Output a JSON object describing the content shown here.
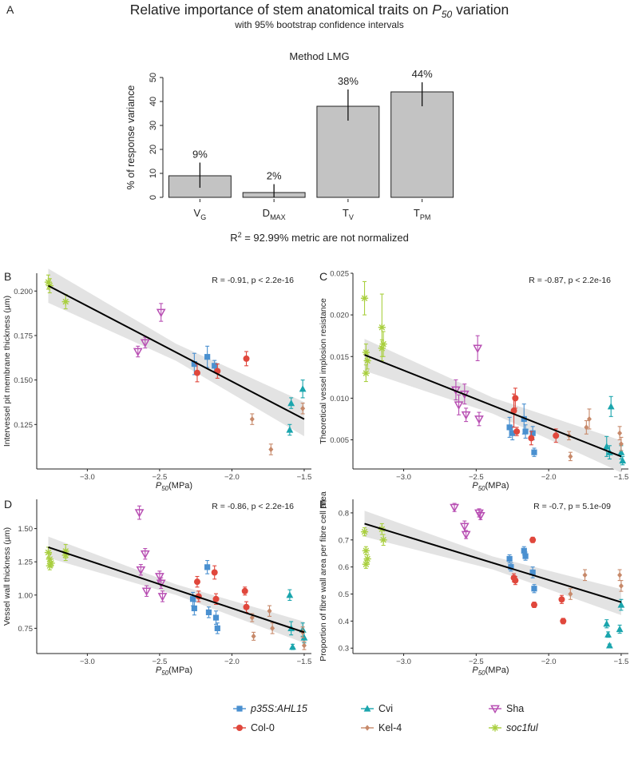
{
  "chart_data": [
    {
      "panel": "A",
      "type": "bar",
      "title": "Relative importance of stem anatomical traits on P50 variation",
      "title_main": "Relative importance of stem anatomical traits on ",
      "title_italic": "P",
      "title_sub": "50",
      "title_end": " variation",
      "subtitle": "with 95% bootstrap confidence intervals",
      "method": "Method LMG",
      "ylabel": "% of response variance",
      "ylim": [
        0,
        50
      ],
      "yticks": [
        "0",
        "10",
        "20",
        "30",
        "40",
        "50"
      ],
      "categories": [
        {
          "base": "V",
          "sub": "G"
        },
        {
          "base": "D",
          "sub": "MAX"
        },
        {
          "base": "T",
          "sub": "V"
        },
        {
          "base": "T",
          "sub": "PM"
        }
      ],
      "values": [
        9,
        2,
        38,
        44
      ],
      "value_labels": [
        "9%",
        "2%",
        "38%",
        "44%"
      ],
      "ci": [
        [
          4,
          14.5
        ],
        [
          0,
          5.5
        ],
        [
          32,
          45
        ],
        [
          38,
          48
        ]
      ],
      "footnote_pre": "R",
      "footnote_sup": "2",
      "footnote_post": " = 92.99% metric are not normalized"
    },
    {
      "panel": "B",
      "type": "scatter",
      "ylabel": "Intervessel pit membrane thickness (µm)",
      "xlabel_italic": "P",
      "xlabel_sub": "50",
      "xlabel_unit": "(MPa)",
      "xlim": [
        -3.35,
        -1.45
      ],
      "ylim": [
        0.1,
        0.21
      ],
      "xticks": [
        "-3.0",
        "-2.5",
        "-2.0",
        "-1.5"
      ],
      "xtick_values": [
        -3.0,
        -2.5,
        -2.0,
        -1.5
      ],
      "yticks": [
        "0.125",
        "0.150",
        "0.175",
        "0.200"
      ],
      "ytick_values": [
        0.125,
        0.15,
        0.175,
        0.2
      ],
      "annotation": "R = -0.91, p < 2.2e-16",
      "fit": {
        "x": [
          -3.27,
          -1.5
        ],
        "y": [
          0.203,
          0.128
        ],
        "band": 0.006
      },
      "series": [
        {
          "name": "soc1ful",
          "x": [
            -3.27,
            -3.26,
            -3.15
          ],
          "y": [
            0.205,
            0.203,
            0.194
          ],
          "err": [
            0.004,
            0.004,
            0.004
          ]
        },
        {
          "name": "Sha",
          "x": [
            -2.65,
            -2.6,
            -2.49
          ],
          "y": [
            0.166,
            0.171,
            0.188
          ],
          "err": [
            0.003,
            0.003,
            0.005
          ]
        },
        {
          "name": "p35S:AHL15",
          "x": [
            -2.26,
            -2.17,
            -2.12
          ],
          "y": [
            0.159,
            0.163,
            0.158
          ],
          "err": [
            0.006,
            0.006,
            0.003
          ]
        },
        {
          "name": "Col-0",
          "x": [
            -2.24,
            -2.1,
            -1.9
          ],
          "y": [
            0.154,
            0.155,
            0.162
          ],
          "err": [
            0.005,
            0.004,
            0.004
          ]
        },
        {
          "name": "Cvi",
          "x": [
            -1.6,
            -1.59,
            -1.51
          ],
          "y": [
            0.122,
            0.137,
            0.145
          ],
          "err": [
            0.003,
            0.003,
            0.005
          ]
        },
        {
          "name": "Kel-4",
          "x": [
            -1.86,
            -1.73,
            -1.51
          ],
          "y": [
            0.128,
            0.111,
            0.134
          ],
          "err": [
            0.003,
            0.003,
            0.003
          ]
        }
      ]
    },
    {
      "panel": "C",
      "type": "scatter",
      "ylabel": "Theoretical vessel implosion resistance",
      "xlabel_italic": "P",
      "xlabel_sub": "50",
      "xlabel_unit": "(MPa)",
      "xlim": [
        -3.35,
        -1.45
      ],
      "ylim": [
        0.0015,
        0.025
      ],
      "xticks": [
        "-3.0",
        "-2.5",
        "-2.0",
        "-1.5"
      ],
      "xtick_values": [
        -3.0,
        -2.5,
        -2.0,
        -1.5
      ],
      "yticks": [
        "0.005",
        "0.010",
        "0.015",
        "0.020",
        "0.025"
      ],
      "ytick_values": [
        0.005,
        0.01,
        0.015,
        0.02,
        0.025
      ],
      "annotation": "R = -0.87, p < 2.2e-16",
      "fit": {
        "x": [
          -3.27,
          -1.5
        ],
        "y": [
          0.0152,
          0.003
        ],
        "band": 0.0012
      },
      "series": [
        {
          "name": "soc1ful",
          "x": [
            -3.27,
            -3.26,
            -3.25,
            -3.26,
            -3.15,
            -3.14,
            -3.15
          ],
          "y": [
            0.022,
            0.0155,
            0.0145,
            0.013,
            0.0185,
            0.0165,
            0.016
          ],
          "err": [
            0.002,
            0.001,
            0.001,
            0.001,
            0.004,
            0.0015,
            0.001
          ]
        },
        {
          "name": "Sha",
          "x": [
            -2.64,
            -2.62,
            -2.58,
            -2.57,
            -2.49,
            -2.48
          ],
          "y": [
            0.011,
            0.0092,
            0.0105,
            0.008,
            0.016,
            0.0075
          ],
          "err": [
            0.0012,
            0.0012,
            0.0012,
            0.0008,
            0.0015,
            0.0008
          ]
        },
        {
          "name": "p35S:AHL15",
          "x": [
            -2.27,
            -2.25,
            -2.17,
            -2.16,
            -2.11,
            -2.1
          ],
          "y": [
            0.0065,
            0.0058,
            0.0075,
            0.006,
            0.0058,
            0.0035
          ],
          "err": [
            0.0012,
            0.0008,
            0.0018,
            0.0008,
            0.0008,
            0.0005
          ]
        },
        {
          "name": "Col-0",
          "x": [
            -2.24,
            -2.23,
            -2.22,
            -2.12,
            -1.95
          ],
          "y": [
            0.0085,
            0.01,
            0.006,
            0.0052,
            0.0055
          ],
          "err": [
            0.002,
            0.0012,
            0.0005,
            0.0008,
            0.0008
          ]
        },
        {
          "name": "Cvi",
          "x": [
            -1.6,
            -1.58,
            -1.57,
            -1.5,
            -1.49
          ],
          "y": [
            0.0042,
            0.0035,
            0.009,
            0.0035,
            0.0025
          ],
          "err": [
            0.0012,
            0.0008,
            0.0012,
            0.0008,
            0.0005
          ]
        },
        {
          "name": "Kel-4",
          "x": [
            -1.86,
            -1.85,
            -1.74,
            -1.72,
            -1.51,
            -1.5
          ],
          "y": [
            0.0055,
            0.003,
            0.0065,
            0.0075,
            0.0058,
            0.0045
          ],
          "err": [
            0.0005,
            0.0005,
            0.0008,
            0.0012,
            0.0008,
            0.0008
          ]
        }
      ]
    },
    {
      "panel": "D",
      "type": "scatter",
      "ylabel": "Vessel wall thickness (µm)",
      "xlabel_italic": "P",
      "xlabel_sub": "50",
      "xlabel_unit": "(MPa)",
      "xlim": [
        -3.35,
        -1.45
      ],
      "ylim": [
        0.56,
        1.72
      ],
      "xticks": [
        "-3.0",
        "-2.5",
        "-2.0",
        "-1.5"
      ],
      "xtick_values": [
        -3.0,
        -2.5,
        -2.0,
        -1.5
      ],
      "yticks": [
        "0.75",
        "1.00",
        "1.25",
        "1.50"
      ],
      "ytick_values": [
        0.75,
        1.0,
        1.25,
        1.5
      ],
      "annotation": "R = -0.86, p < 2.2e-16",
      "fit": {
        "x": [
          -3.27,
          -1.5
        ],
        "y": [
          1.36,
          0.72
        ],
        "band": 0.05
      },
      "series": [
        {
          "name": "soc1ful",
          "x": [
            -3.27,
            -3.26,
            -3.25,
            -3.26,
            -3.15,
            -3.15
          ],
          "y": [
            1.32,
            1.27,
            1.24,
            1.22,
            1.33,
            1.3
          ],
          "err": [
            0.04,
            0.04,
            0.03,
            0.03,
            0.05,
            0.04
          ]
        },
        {
          "name": "Sha",
          "x": [
            -2.64,
            -2.63,
            -2.6,
            -2.59,
            -2.5,
            -2.49,
            -2.48
          ],
          "y": [
            1.62,
            1.19,
            1.31,
            1.03,
            1.14,
            1.09,
            0.99
          ],
          "err": [
            0.05,
            0.04,
            0.04,
            0.04,
            0.04,
            0.04,
            0.04
          ]
        },
        {
          "name": "p35S:AHL15",
          "x": [
            -2.27,
            -2.26,
            -2.17,
            -2.16,
            -2.11,
            -2.1
          ],
          "y": [
            0.97,
            0.9,
            1.21,
            0.87,
            0.83,
            0.75
          ],
          "err": [
            0.05,
            0.05,
            0.05,
            0.04,
            0.05,
            0.04
          ]
        },
        {
          "name": "Col-0",
          "x": [
            -2.24,
            -2.23,
            -2.12,
            -2.11,
            -1.91,
            -1.9
          ],
          "y": [
            1.1,
            0.99,
            1.17,
            0.97,
            1.03,
            0.91
          ],
          "err": [
            0.04,
            0.04,
            0.05,
            0.04,
            0.03,
            0.04
          ]
        },
        {
          "name": "Cvi",
          "x": [
            -1.6,
            -1.59,
            -1.58,
            -1.51,
            -1.5
          ],
          "y": [
            1.0,
            0.75,
            0.61,
            0.74,
            0.68
          ],
          "err": [
            0.04,
            0.05,
            0.02,
            0.05,
            0.04
          ]
        },
        {
          "name": "Kel-4",
          "x": [
            -1.86,
            -1.85,
            -1.74,
            -1.72,
            -1.51,
            -1.5
          ],
          "y": [
            0.83,
            0.69,
            0.88,
            0.75,
            0.72,
            0.62
          ],
          "err": [
            0.03,
            0.03,
            0.04,
            0.04,
            0.04,
            0.03
          ]
        }
      ]
    },
    {
      "panel": "E",
      "type": "scatter",
      "ylabel": "Proportion of fibre wall area per fibre cell area",
      "xlabel_italic": "P",
      "xlabel_sub": "50",
      "xlabel_unit": "(MPa)",
      "xlim": [
        -3.35,
        -1.45
      ],
      "ylim": [
        0.28,
        0.85
      ],
      "xticks": [
        "-3.0",
        "-2.5",
        "-2.0",
        "-1.5"
      ],
      "xtick_values": [
        -3.0,
        -2.5,
        -2.0,
        -1.5
      ],
      "yticks": [
        "0.3",
        "0.4",
        "0.5",
        "0.6",
        "0.7",
        "0.8"
      ],
      "ytick_values": [
        0.3,
        0.4,
        0.5,
        0.6,
        0.7,
        0.8
      ],
      "annotation": "R = -0.7, p  = 5.1e-09",
      "fit": {
        "x": [
          -3.27,
          -1.5
        ],
        "y": [
          0.76,
          0.47
        ],
        "band": 0.03
      },
      "series": [
        {
          "name": "soc1ful",
          "x": [
            -3.27,
            -3.26,
            -3.25,
            -3.26,
            -3.15,
            -3.14
          ],
          "y": [
            0.73,
            0.66,
            0.63,
            0.61,
            0.74,
            0.7
          ],
          "err": [
            0.015,
            0.015,
            0.015,
            0.015,
            0.02,
            0.02
          ]
        },
        {
          "name": "Sha",
          "x": [
            -2.65,
            -2.58,
            -2.57,
            -2.48,
            -2.47
          ],
          "y": [
            0.82,
            0.75,
            0.72,
            0.8,
            0.79
          ],
          "err": [
            0.015,
            0.02,
            0.015,
            0.015,
            0.015
          ]
        },
        {
          "name": "p35S:AHL15",
          "x": [
            -2.27,
            -2.26,
            -2.17,
            -2.16,
            -2.11,
            -2.1
          ],
          "y": [
            0.63,
            0.6,
            0.66,
            0.64,
            0.58,
            0.52
          ],
          "err": [
            0.015,
            0.015,
            0.015,
            0.015,
            0.02,
            0.015
          ]
        },
        {
          "name": "Col-0",
          "x": [
            -2.24,
            -2.23,
            -2.11,
            -2.1,
            -1.91,
            -1.9
          ],
          "y": [
            0.56,
            0.55,
            0.7,
            0.46,
            0.48,
            0.4
          ],
          "err": [
            0.015,
            0.015,
            0.01,
            0.01,
            0.015,
            0.01
          ]
        },
        {
          "name": "Cvi",
          "x": [
            -1.6,
            -1.59,
            -1.58,
            -1.51,
            -1.5
          ],
          "y": [
            0.39,
            0.35,
            0.31,
            0.37,
            0.46
          ],
          "err": [
            0.015,
            0.01,
            0.005,
            0.015,
            0.02
          ]
        },
        {
          "name": "Kel-4",
          "x": [
            -1.85,
            -1.75,
            -1.51,
            -1.5
          ],
          "y": [
            0.5,
            0.57,
            0.57,
            0.53
          ],
          "err": [
            0.02,
            0.02,
            0.02,
            0.02
          ]
        }
      ]
    }
  ],
  "panel_letters": [
    "A",
    "B",
    "C",
    "D",
    "E"
  ],
  "legend": [
    {
      "name": "p35S:AHL15",
      "label": "p35S:AHL15",
      "italic": true,
      "color": "#4a90d0",
      "shape": "square"
    },
    {
      "name": "Col-0",
      "label": "Col-0",
      "italic": false,
      "color": "#e0473c",
      "shape": "circle"
    },
    {
      "name": "Cvi",
      "label": "Cvi",
      "italic": false,
      "color": "#1aa5ad",
      "shape": "triangle"
    },
    {
      "name": "Kel-4",
      "label": "Kel-4",
      "italic": false,
      "color": "#c7896a",
      "shape": "diamond"
    },
    {
      "name": "Sha",
      "label": "Sha",
      "italic": false,
      "color": "#b84fb3",
      "shape": "triangle-down-open"
    },
    {
      "name": "soc1ful",
      "label": "soc1ful",
      "italic": true,
      "color": "#a9cf3f",
      "shape": "asterisk"
    }
  ]
}
